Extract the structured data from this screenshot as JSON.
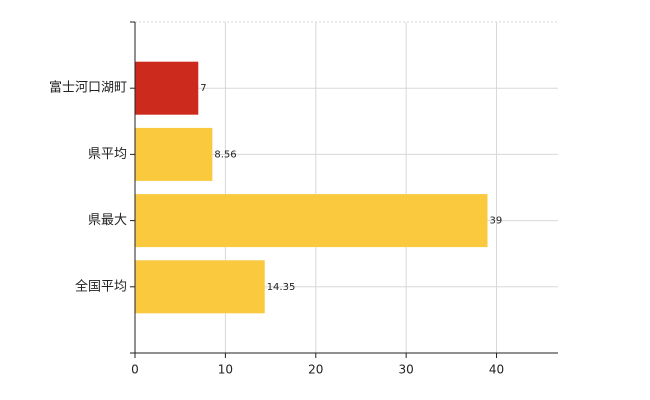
{
  "chart_data": {
    "type": "hbar",
    "categories": [
      "富士河口湖町",
      "県平均",
      "県最大",
      "全国平均"
    ],
    "values": [
      7,
      8.56,
      39,
      14.35
    ],
    "colors": [
      "#cc2a1c",
      "#fbc93d",
      "#fbc93d",
      "#fbc93d"
    ],
    "xlim": [
      0,
      46.8
    ],
    "xticks": [
      0,
      10,
      20,
      30,
      40
    ],
    "grid": true
  }
}
